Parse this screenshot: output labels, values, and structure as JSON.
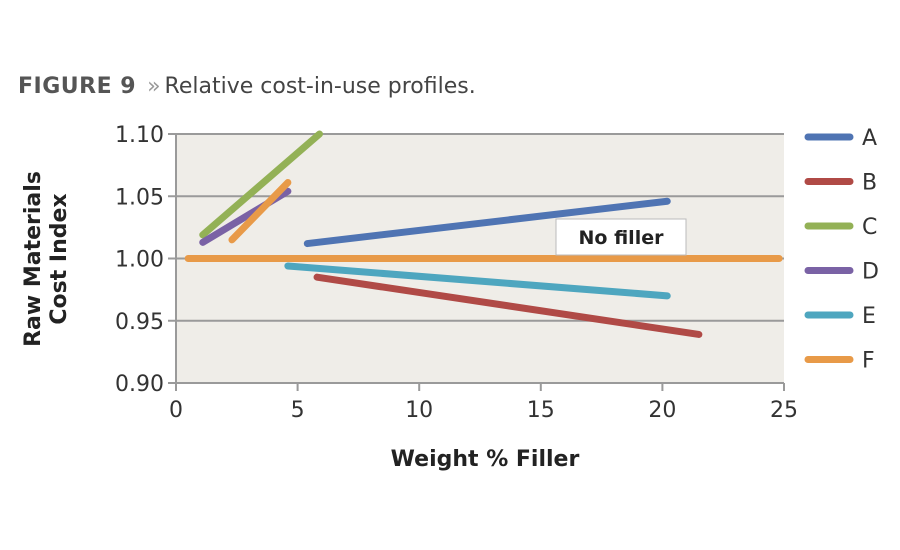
{
  "caption": {
    "figure": "FIGURE 9",
    "separator": "»",
    "text": "Relative cost-in-use profiles."
  },
  "chart_data": {
    "type": "line",
    "title": "Relative cost-in-use profiles.",
    "xlabel": "Weight % Filler",
    "ylabel": [
      "Raw Materials",
      "Cost Index"
    ],
    "xlim": [
      0,
      25
    ],
    "ylim": [
      0.9,
      1.1
    ],
    "xticks": [
      "0",
      "5",
      "10",
      "15",
      "20",
      "25"
    ],
    "xtick_values": [
      0,
      5,
      10,
      15,
      20,
      25
    ],
    "yticks": [
      "0.90",
      "0.95",
      "1.00",
      "1.05",
      "1.10"
    ],
    "ytick_values": [
      0.9,
      0.95,
      1.0,
      1.05,
      1.1
    ],
    "grid": "horizontal",
    "legend_position": "right",
    "series": [
      {
        "name": "A",
        "color": "#4f74b3",
        "x": [
          5.4,
          20.2
        ],
        "y": [
          1.012,
          1.046
        ]
      },
      {
        "name": "B",
        "color": "#b04a46",
        "x": [
          5.8,
          21.5
        ],
        "y": [
          0.985,
          0.939
        ]
      },
      {
        "name": "C",
        "color": "#93b156",
        "x": [
          1.1,
          5.9
        ],
        "y": [
          1.019,
          1.1
        ]
      },
      {
        "name": "D",
        "color": "#7a62a5",
        "x": [
          1.1,
          4.6
        ],
        "y": [
          1.013,
          1.054
        ]
      },
      {
        "name": "E",
        "color": "#4ea6bf",
        "x": [
          4.6,
          20.2
        ],
        "y": [
          0.994,
          0.97
        ]
      },
      {
        "name": "F",
        "color": "#e89a48",
        "x": [
          2.3,
          4.6
        ],
        "y": [
          1.015,
          1.061
        ]
      },
      {
        "name": "F",
        "color": "#e89a48",
        "x": [
          0.5,
          24.8
        ],
        "y": [
          1.0,
          1.0
        ],
        "reference": true
      }
    ],
    "annotations": [
      {
        "text": "No filler",
        "x": 18.5,
        "y": 1.018
      }
    ]
  }
}
